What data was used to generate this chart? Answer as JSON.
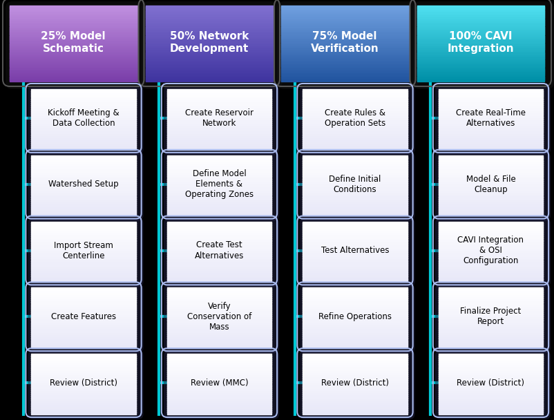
{
  "columns": [
    {
      "title": "25% Model\nSchematic",
      "header_color_top": "#C090E0",
      "header_color_bot": "#7B3FAA",
      "line_color": "#00C8D4",
      "items": [
        "Kickoff Meeting &\nData Collection",
        "Watershed Setup",
        "Import Stream\nCenterline",
        "Create Features",
        "Review (District)"
      ]
    },
    {
      "title": "50% Network\nDevelopment",
      "header_color_top": "#8070D0",
      "header_color_bot": "#4035A0",
      "line_color": "#00C8D4",
      "items": [
        "Create Reservoir\nNetwork",
        "Define Model\nElements &\nOperating Zones",
        "Create Test\nAlternatives",
        "Verify\nConservation of\nMass",
        "Review (MMC)"
      ]
    },
    {
      "title": "75% Model\nVerification",
      "header_color_top": "#70A0E0",
      "header_color_bot": "#2255A0",
      "line_color": "#00C8D4",
      "items": [
        "Create Rules &\nOperation Sets",
        "Define Initial\nConditions",
        "Test Alternatives",
        "Refine Operations",
        "Review (District)"
      ]
    },
    {
      "title": "100% CAVI\nIntegration",
      "header_color_top": "#50E0F0",
      "header_color_bot": "#0090A8",
      "line_color": "#00C8D4",
      "items": [
        "Create Real-Time\nAlternatives",
        "Model & File\nCleanup",
        "CAVI Integration\n& OSI\nConfiguration",
        "Finalize Project\nReport",
        "Review (District)"
      ]
    }
  ],
  "background_color": "#000000",
  "item_box_fill": "#FFFFFF",
  "item_box_edge": "#AABBEE",
  "item_text_color": "#000000",
  "header_text_color": "#FFFFFF",
  "fig_width": 8.02,
  "fig_height": 6.08,
  "dpi": 100
}
